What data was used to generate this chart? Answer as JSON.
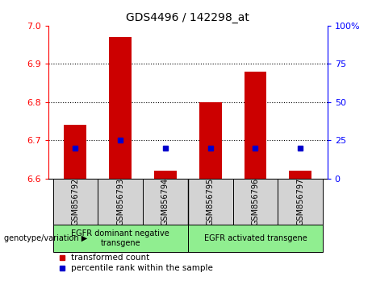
{
  "title": "GDS4496 / 142298_at",
  "samples": [
    "GSM856792",
    "GSM856793",
    "GSM856794",
    "GSM856795",
    "GSM856796",
    "GSM856797"
  ],
  "transformed_counts": [
    6.74,
    6.97,
    6.62,
    6.8,
    6.88,
    6.62
  ],
  "percentile_ranks": [
    20,
    25,
    20,
    20,
    20,
    20
  ],
  "bar_bottom": 6.6,
  "ylim": [
    6.6,
    7.0
  ],
  "y2lim": [
    0,
    100
  ],
  "yticks": [
    6.6,
    6.7,
    6.8,
    6.9,
    7.0
  ],
  "y2ticks": [
    0,
    25,
    50,
    75,
    100
  ],
  "bar_color": "#cc0000",
  "dot_color": "#0000cc",
  "group1_label": "EGFR dominant negative\ntransgene",
  "group2_label": "EGFR activated transgene",
  "group_color": "#90ee90",
  "sample_box_color": "#d3d3d3",
  "xlabel_text": "genotype/variation",
  "legend_item1": "transformed count",
  "legend_item2": "percentile rank within the sample",
  "bar_width": 0.5,
  "figure_width": 4.61,
  "figure_height": 3.54,
  "dpi": 100
}
